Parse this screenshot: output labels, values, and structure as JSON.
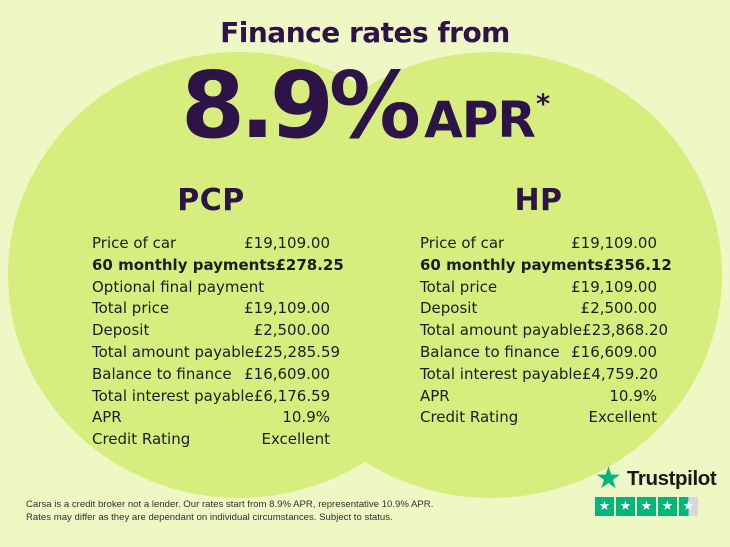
{
  "colors": {
    "background": "#eff7c4",
    "circle": "#d7ee7f",
    "heading": "#2d1348",
    "body_text": "#1d1d1d",
    "trustpilot_green": "#00b67a",
    "trustpilot_text": "#191919",
    "trustpilot_gray": "#d5d7dc"
  },
  "header": {
    "title": "Finance rates from",
    "rate": "8.9%",
    "rate_suffix": "APR",
    "rate_asterisk": "*"
  },
  "pcp": {
    "heading": "PCP",
    "rows": [
      {
        "label": "Price of car",
        "value": "£19,109.00",
        "bold": false
      },
      {
        "label": "60 monthly payments",
        "value": "£278.25",
        "bold": true
      },
      {
        "label": "Optional final payment",
        "value": "",
        "bold": false
      },
      {
        "label": "Total price",
        "value": "£19,109.00",
        "bold": false
      },
      {
        "label": "Deposit",
        "value": "£2,500.00",
        "bold": false
      },
      {
        "label": "Total amount payable",
        "value": "£25,285.59",
        "bold": false
      },
      {
        "label": "Balance to finance",
        "value": "£16,609.00",
        "bold": false
      },
      {
        "label": "Total interest payable",
        "value": "£6,176.59",
        "bold": false
      },
      {
        "label": "APR",
        "value": "10.9%",
        "bold": false
      },
      {
        "label": "Credit Rating",
        "value": "Excellent",
        "bold": false
      }
    ]
  },
  "hp": {
    "heading": "HP",
    "rows": [
      {
        "label": "Price of car",
        "value": "£19,109.00",
        "bold": false
      },
      {
        "label": "60 monthly payments",
        "value": "£356.12",
        "bold": true
      },
      {
        "label": "Total price",
        "value": "£19,109.00",
        "bold": false
      },
      {
        "label": "Deposit",
        "value": "£2,500.00",
        "bold": false
      },
      {
        "label": "Total amount payable",
        "value": "£23,868.20",
        "bold": false
      },
      {
        "label": "Balance to finance",
        "value": "£16,609.00",
        "bold": false
      },
      {
        "label": "Total interest payable",
        "value": "£4,759.20",
        "bold": false
      },
      {
        "label": "APR",
        "value": "10.9%",
        "bold": false
      },
      {
        "label": "Credit Rating",
        "value": "Excellent",
        "bold": false
      }
    ]
  },
  "footer": {
    "disclaimer_line1": "Carsa is a credit broker not a lender. Our rates start from 8.9% APR, representative 10.9% APR.",
    "disclaimer_line2": "Rates may differ as they are dependant on individual circumstances. Subject to status.",
    "trustpilot": {
      "brand": "Trustpilot",
      "star_glyph": "★",
      "rating_stars": 4.5,
      "stars_total": 5
    }
  }
}
